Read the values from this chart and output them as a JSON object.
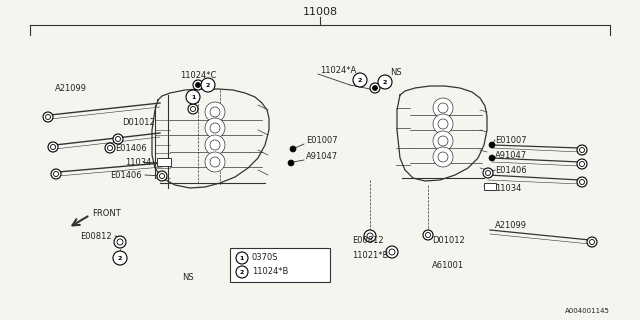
{
  "title": "11008",
  "bg_color": "#f5f5f0",
  "line_color": "#333333",
  "text_color": "#222222",
  "diagram_id": "A004001145",
  "fig_w": 6.4,
  "fig_h": 3.2,
  "dpi": 100,
  "legend": [
    {
      "num": "1",
      "label": "0370S"
    },
    {
      "num": "2",
      "label": "11024*B"
    }
  ]
}
